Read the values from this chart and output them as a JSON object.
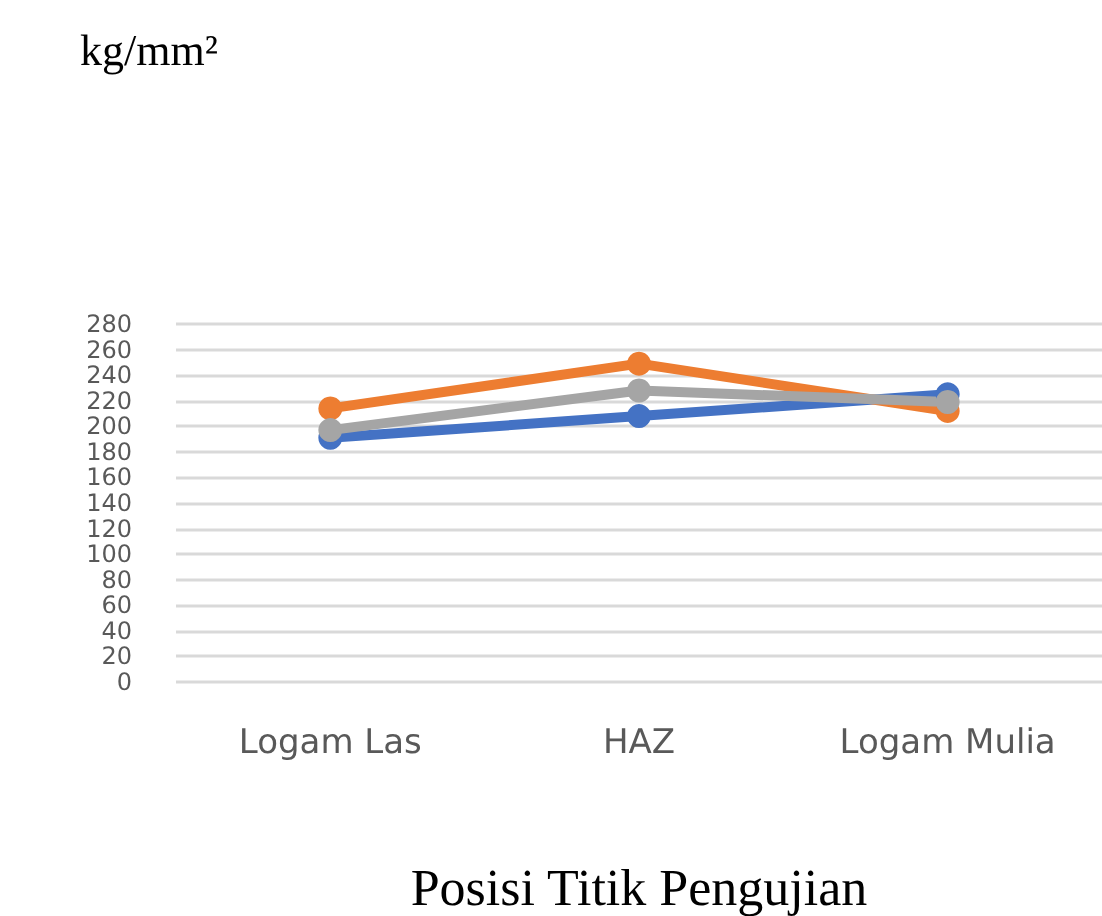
{
  "chart_data": {
    "type": "line",
    "annotations": [
      "kg/mm²"
    ],
    "xlabel": "Posisi Titik Pengujian",
    "categories": [
      "Logam Las",
      "HAZ",
      "Logam Mulia"
    ],
    "series": [
      {
        "color": "#4472c4",
        "values": [
          191,
          208,
          225
        ]
      },
      {
        "color": "#ed7d31",
        "values": [
          214,
          249,
          212
        ]
      },
      {
        "color": "#a5a5a5",
        "values": [
          197,
          228,
          219
        ]
      }
    ],
    "ylim": [
      0,
      280
    ],
    "yticks": [
      0,
      20,
      40,
      60,
      80,
      100,
      120,
      140,
      160,
      180,
      200,
      220,
      240,
      260,
      280
    ],
    "grid": "y",
    "marker": "circle",
    "line_style": "solid"
  }
}
